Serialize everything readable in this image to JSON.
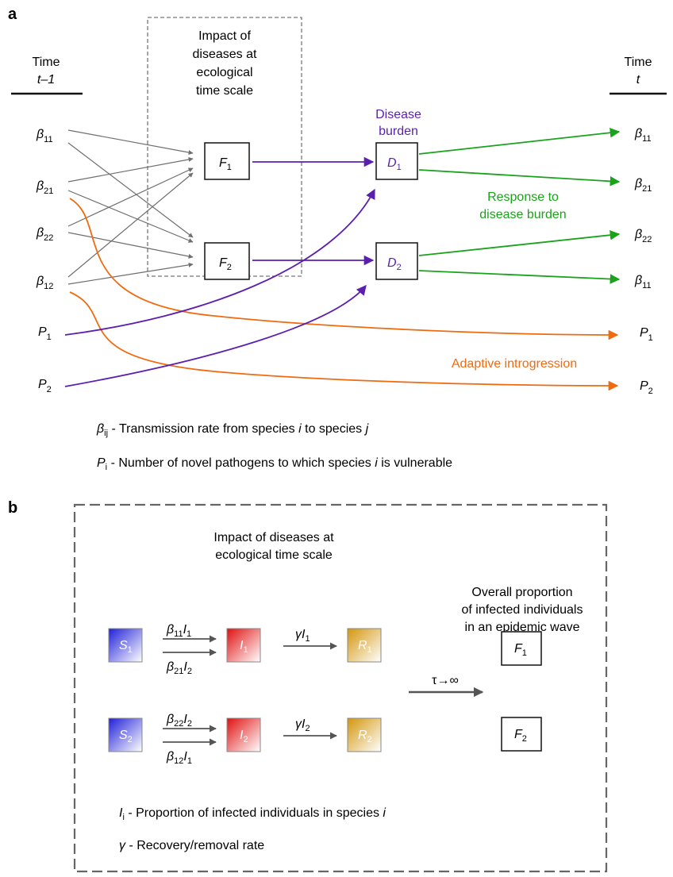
{
  "panel_a": {
    "label": "a",
    "time_left": {
      "line1": "Time",
      "line2": "t–1"
    },
    "time_right": {
      "line1": "Time",
      "line2": "t"
    },
    "box_title": [
      "Impact of",
      "diseases at",
      "ecological",
      "time scale"
    ],
    "disease_burden": [
      "Disease",
      "burden"
    ],
    "response": [
      "Response to",
      "disease burden"
    ],
    "adaptive": "Adaptive introgression",
    "left_nodes": [
      {
        "sym": "β",
        "sub": "11"
      },
      {
        "sym": "β",
        "sub": "21"
      },
      {
        "sym": "β",
        "sub": "22"
      },
      {
        "sym": "β",
        "sub": "12"
      },
      {
        "sym": "P",
        "sub": "1"
      },
      {
        "sym": "P",
        "sub": "2"
      }
    ],
    "right_nodes": [
      {
        "sym": "β",
        "sub": "11"
      },
      {
        "sym": "β",
        "sub": "21"
      },
      {
        "sym": "β",
        "sub": "22"
      },
      {
        "sym": "β",
        "sub": "11"
      },
      {
        "sym": "P",
        "sub": "1"
      },
      {
        "sym": "P",
        "sub": "2"
      }
    ],
    "f_boxes": [
      {
        "sym": "F",
        "sub": "1"
      },
      {
        "sym": "F",
        "sub": "2"
      }
    ],
    "d_boxes": [
      {
        "sym": "D",
        "sub": "1"
      },
      {
        "sym": "D",
        "sub": "2"
      }
    ],
    "legend": [
      {
        "sym": "β",
        "sub": "ij",
        "text_a": " - Transmission rate from species ",
        "i1": "i",
        "text_b": "  to species ",
        "i2": "j"
      },
      {
        "sym": "P",
        "sub": "i",
        "text_a": " - Number of novel pathogens to which species ",
        "i1": "i",
        "text_b": " is vulnerable",
        "i2": ""
      }
    ]
  },
  "panel_b": {
    "label": "b",
    "title": [
      "Impact of diseases at",
      "ecological time scale"
    ],
    "overall": [
      "Overall proportion",
      "of infected individuals",
      "in an epidemic wave"
    ],
    "tau": "τ→∞",
    "rows": [
      {
        "S": {
          "sym": "S",
          "sub": "1"
        },
        "I": {
          "sym": "I",
          "sub": "1"
        },
        "R": {
          "sym": "R",
          "sub": "1"
        },
        "rate_top": {
          "b": "β",
          "bsub": "11",
          "v": "I",
          "vsub": "1"
        },
        "rate_bot": {
          "b": "β",
          "bsub": "21",
          "v": "I",
          "vsub": "2"
        },
        "gamma": {
          "g": "γ",
          "v": "I",
          "vsub": "1"
        },
        "F": {
          "sym": "F",
          "sub": "1"
        }
      },
      {
        "S": {
          "sym": "S",
          "sub": "2"
        },
        "I": {
          "sym": "I",
          "sub": "2"
        },
        "R": {
          "sym": "R",
          "sub": "2"
        },
        "rate_top": {
          "b": "β",
          "bsub": "22",
          "v": "I",
          "vsub": "2"
        },
        "rate_bot": {
          "b": "β",
          "bsub": "12",
          "v": "I",
          "vsub": "1"
        },
        "gamma": {
          "g": "γ",
          "v": "I",
          "vsub": "2"
        },
        "F": {
          "sym": "F",
          "sub": "2"
        }
      }
    ],
    "legend": [
      {
        "sym": "I",
        "sub": "i",
        "text": " - Proportion of infected individuals in species ",
        "ital": "i"
      },
      {
        "sym": "γ",
        "sub": "",
        "text": " - Recovery/removal rate",
        "ital": ""
      }
    ]
  },
  "colors": {
    "gray": "#6e6e6e",
    "purple": "#5b1fb0",
    "green": "#1aa31a",
    "orange": "#f06a10",
    "blue": "#2a2ad8",
    "red": "#e01818",
    "gold": "#d49a1a"
  }
}
